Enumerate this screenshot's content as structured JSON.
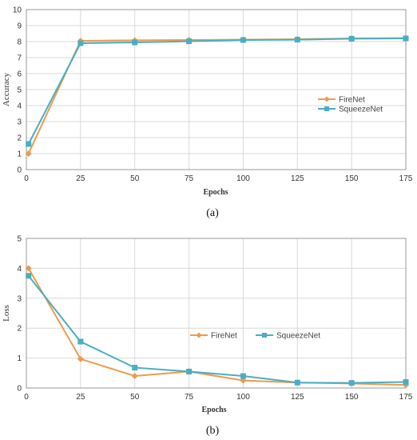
{
  "chart_data": [
    {
      "type": "line",
      "ylabel": "Accuracy",
      "xlabel": "Epochs",
      "caption": "(a)",
      "x": [
        1,
        25,
        50,
        75,
        100,
        125,
        150,
        175
      ],
      "xlim": [
        0,
        175
      ],
      "ylim": [
        0,
        10
      ],
      "xticks": [
        0,
        25,
        50,
        75,
        100,
        125,
        150,
        175
      ],
      "yticks": [
        0,
        1,
        2,
        3,
        4,
        5,
        6,
        7,
        8,
        9,
        10
      ],
      "grid": true,
      "legend_position": "right",
      "series": [
        {
          "name": "FireNet",
          "color": "#ee9a4d",
          "marker": "diamond",
          "values": [
            1.0,
            8.05,
            8.08,
            8.1,
            8.12,
            8.15,
            8.2,
            8.22
          ]
        },
        {
          "name": "SqueezeNet",
          "color": "#4aaec3",
          "marker": "square",
          "values": [
            1.6,
            7.9,
            7.95,
            8.02,
            8.1,
            8.12,
            8.18,
            8.2
          ]
        }
      ]
    },
    {
      "type": "line",
      "ylabel": "Loss",
      "xlabel": "Epochs",
      "caption": "(b)",
      "x": [
        1,
        25,
        50,
        75,
        100,
        125,
        150,
        175
      ],
      "xlim": [
        0,
        175
      ],
      "ylim": [
        0,
        5
      ],
      "xticks": [
        0,
        25,
        50,
        75,
        100,
        125,
        150,
        175
      ],
      "yticks": [
        0,
        1,
        2,
        3,
        4,
        5
      ],
      "grid": true,
      "legend_position": "center",
      "series": [
        {
          "name": "FireNet",
          "color": "#ee9a4d",
          "marker": "diamond",
          "values": [
            4.0,
            0.97,
            0.4,
            0.55,
            0.25,
            0.18,
            0.15,
            0.1
          ]
        },
        {
          "name": "SqueezeNet",
          "color": "#4aaec3",
          "marker": "square",
          "values": [
            3.75,
            1.55,
            0.68,
            0.55,
            0.4,
            0.18,
            0.17,
            0.2
          ]
        }
      ]
    }
  ]
}
